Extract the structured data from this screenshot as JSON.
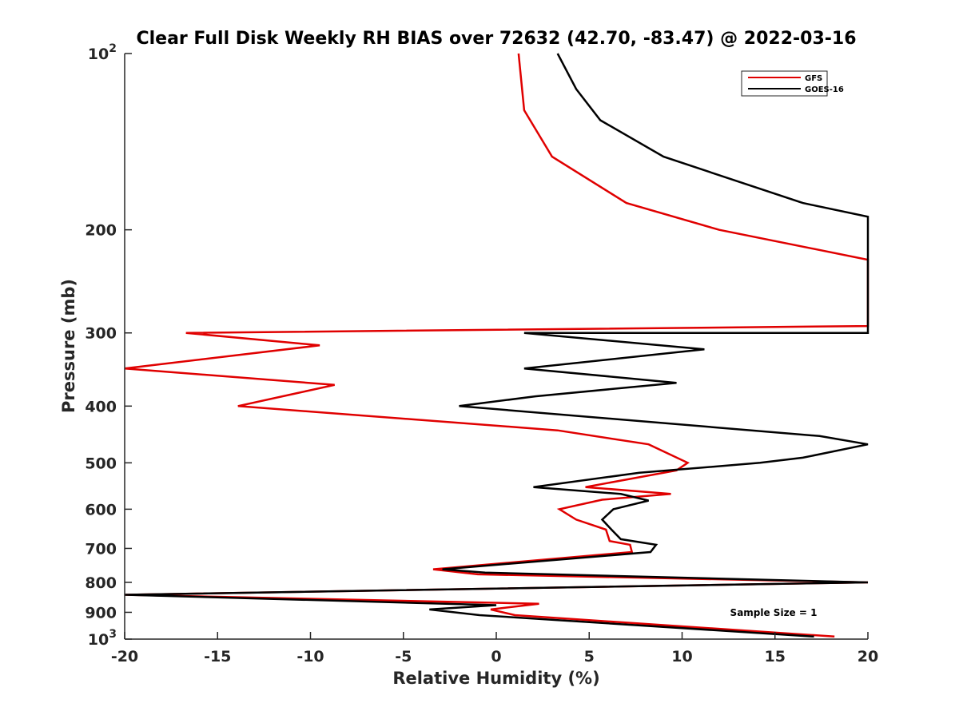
{
  "chart_data": {
    "type": "line",
    "title": "Clear Full Disk Weekly RH BIAS over 72632 (42.70, -83.47) @ 2022-03-16",
    "xlabel": "Relative Humidity (%)",
    "ylabel": "Pressure (mb)",
    "xlim": [
      -20,
      20
    ],
    "ylim": [
      100,
      1000
    ],
    "yscale": "log",
    "y_reversed": true,
    "grid": false,
    "legend_position": "top-right",
    "x_ticks": [
      -20,
      -15,
      -10,
      -5,
      0,
      5,
      10,
      15,
      20
    ],
    "y_ticks": [
      {
        "value": 100,
        "base": "10",
        "exp": "2"
      },
      {
        "value": 200,
        "label": "200"
      },
      {
        "value": 300,
        "label": "300"
      },
      {
        "value": 400,
        "label": "400"
      },
      {
        "value": 500,
        "label": "500"
      },
      {
        "value": 600,
        "label": "600"
      },
      {
        "value": 700,
        "label": "700"
      },
      {
        "value": 800,
        "label": "800"
      },
      {
        "value": 900,
        "label": "900"
      },
      {
        "value": 1000,
        "base": "10",
        "exp": "3"
      }
    ],
    "series": [
      {
        "name": "GFS",
        "color": "#e00000",
        "points": [
          [
            1.2,
            100
          ],
          [
            1.5,
            125
          ],
          [
            3.0,
            150
          ],
          [
            7.0,
            180
          ],
          [
            12.0,
            200
          ],
          [
            20.0,
            225
          ],
          [
            20.0,
            292
          ],
          [
            -16.7,
            300
          ],
          [
            -9.5,
            315
          ],
          [
            -20.0,
            345
          ],
          [
            -8.7,
            368
          ],
          [
            -10.7,
            380
          ],
          [
            -13.9,
            400
          ],
          [
            3.3,
            440
          ],
          [
            8.2,
            465
          ],
          [
            10.3,
            500
          ],
          [
            9.7,
            515
          ],
          [
            4.8,
            550
          ],
          [
            9.4,
            565
          ],
          [
            5.7,
            578
          ],
          [
            3.4,
            600
          ],
          [
            4.3,
            625
          ],
          [
            5.9,
            650
          ],
          [
            6.1,
            680
          ],
          [
            7.2,
            690
          ],
          [
            7.3,
            710
          ],
          [
            -3.4,
            760
          ],
          [
            -1.0,
            775
          ],
          [
            20.0,
            800
          ],
          [
            -20.0,
            840
          ],
          [
            2.3,
            870
          ],
          [
            -0.3,
            890
          ],
          [
            1.0,
            910
          ],
          [
            18.2,
            990
          ]
        ]
      },
      {
        "name": "GOES-16",
        "color": "#000000",
        "points": [
          [
            3.3,
            100
          ],
          [
            4.3,
            115
          ],
          [
            5.6,
            130
          ],
          [
            9.0,
            150
          ],
          [
            16.5,
            180
          ],
          [
            20.0,
            190
          ],
          [
            20.0,
            300
          ],
          [
            1.5,
            300
          ],
          [
            11.2,
            320
          ],
          [
            1.5,
            345
          ],
          [
            9.7,
            365
          ],
          [
            2.1,
            385
          ],
          [
            -2.0,
            400
          ],
          [
            17.4,
            450
          ],
          [
            20.0,
            465
          ],
          [
            16.5,
            490
          ],
          [
            14.2,
            500
          ],
          [
            7.7,
            520
          ],
          [
            2.0,
            550
          ],
          [
            6.7,
            565
          ],
          [
            8.2,
            580
          ],
          [
            6.3,
            600
          ],
          [
            5.7,
            625
          ],
          [
            6.2,
            650
          ],
          [
            6.7,
            675
          ],
          [
            8.6,
            690
          ],
          [
            8.3,
            710
          ],
          [
            -2.9,
            760
          ],
          [
            -0.6,
            770
          ],
          [
            20.0,
            800
          ],
          [
            -20.0,
            840
          ],
          [
            0.0,
            875
          ],
          [
            -3.6,
            890
          ],
          [
            -0.9,
            910
          ],
          [
            17.1,
            990
          ]
        ]
      }
    ],
    "annotation": "Sample Size = 1"
  }
}
